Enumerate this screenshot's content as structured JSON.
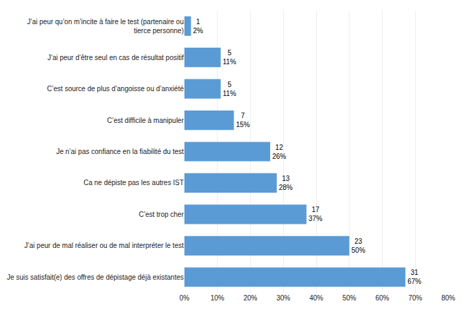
{
  "chart_data": {
    "type": "bar",
    "orientation": "horizontal",
    "categories": [
      "J’ai peur qu’on m’incite à faire le test (partenaire ou\ntierce personne)",
      "J’ai peur d’être seul en cas de résultat positif",
      "C’est source de plus d’angoisse ou d’anxiété",
      "C’est difficile à manipuler",
      "Je n’ai pas confiance en la fiabilité du test",
      "Ca ne dépiste pas les autres IST",
      "C’est trop cher",
      "J’ai peur de mal réaliser ou de mal interpréter le test",
      "Je suis satisfait(e) des offres de dépistage déjà existantes"
    ],
    "values": [
      2,
      11,
      11,
      15,
      26,
      28,
      37,
      50,
      67
    ],
    "value_labels": [
      "2%",
      "11%",
      "11%",
      "15%",
      "26%",
      "28%",
      "37%",
      "50%",
      "67%"
    ],
    "counts": [
      1,
      5,
      5,
      7,
      12,
      13,
      17,
      23,
      31
    ],
    "color": "#5B9BD5",
    "data_labels": true,
    "xlim": [
      0,
      80
    ],
    "xticks": [
      {
        "value": 0,
        "label": "0%"
      },
      {
        "value": 10,
        "label": "10%"
      },
      {
        "value": 20,
        "label": "20%"
      },
      {
        "value": 30,
        "label": "30%"
      },
      {
        "value": 40,
        "label": "40%"
      },
      {
        "value": 50,
        "label": "50%"
      },
      {
        "value": 60,
        "label": "60%"
      },
      {
        "value": 70,
        "label": "70%"
      },
      {
        "value": 80,
        "label": "80%"
      }
    ],
    "grid": true
  }
}
